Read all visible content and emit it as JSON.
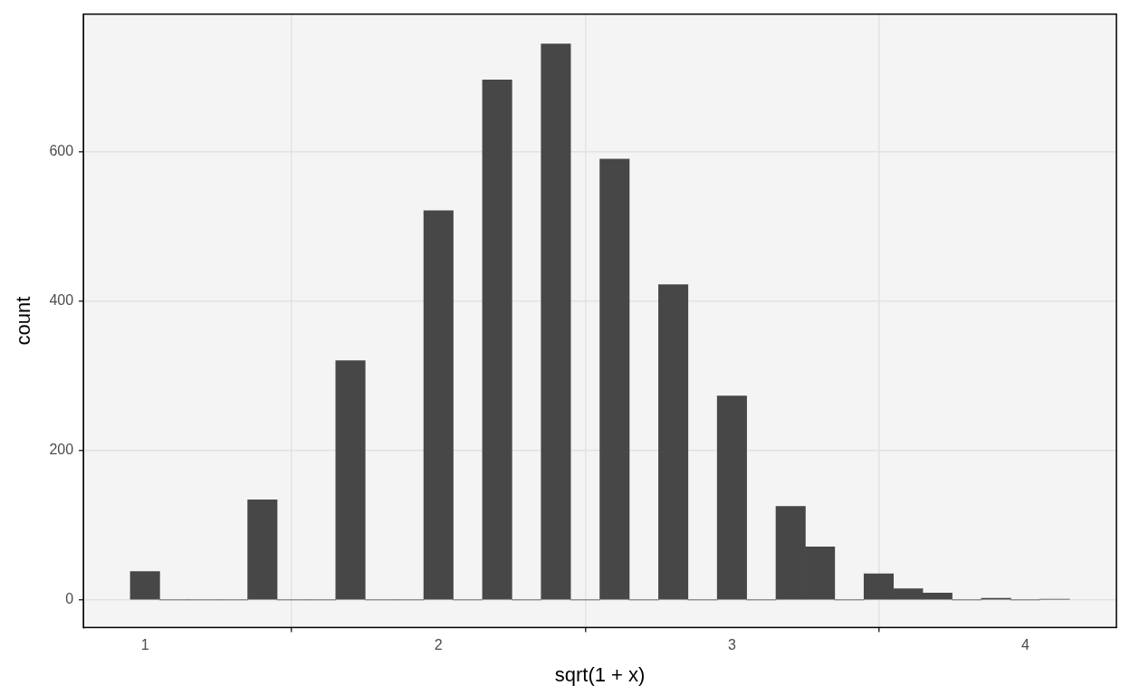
{
  "chart_data": {
    "type": "histogram",
    "x_label": "sqrt(1 + x)",
    "y_label": "count",
    "bins": [
      0.95,
      1.05,
      1.15,
      1.25,
      1.35,
      1.45,
      1.55,
      1.65,
      1.75,
      1.85,
      1.95,
      2.05,
      2.15,
      2.25,
      2.35,
      2.45,
      2.55,
      2.65,
      2.75,
      2.85,
      2.95,
      3.05,
      3.15,
      3.25,
      3.35,
      3.45,
      3.55,
      3.65,
      3.75,
      3.85,
      3.95,
      4.05,
      4.15
    ],
    "values": [
      38,
      0,
      0,
      0,
      134,
      0,
      0,
      320,
      0,
      0,
      521,
      0,
      696,
      0,
      744,
      0,
      590,
      0,
      422,
      0,
      273,
      0,
      125,
      71,
      0,
      35,
      15,
      9,
      0,
      2,
      0,
      1
    ],
    "color": "#474747",
    "xlim": [
      0.79,
      4.31
    ],
    "xticks": [
      1,
      2,
      3,
      4
    ],
    "ylim": [
      -37,
      784
    ],
    "yticks": [
      0,
      200,
      400,
      600
    ],
    "grid": true
  }
}
